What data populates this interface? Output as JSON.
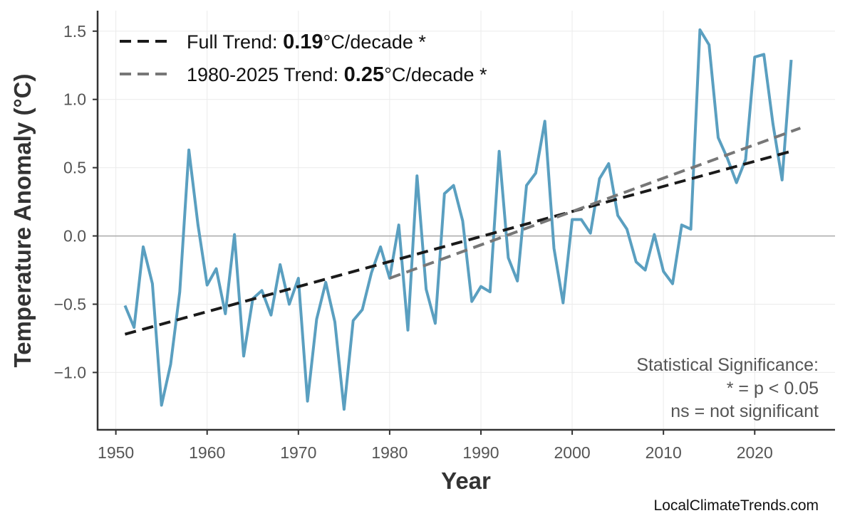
{
  "chart_data": {
    "type": "line",
    "title": "",
    "xlabel": "Year",
    "ylabel": "Temperature Anomaly (°C)",
    "xlim": [
      1948,
      2028.8
    ],
    "ylim": [
      -1.42,
      1.65
    ],
    "xticks": [
      1950,
      1960,
      1970,
      1980,
      1990,
      2000,
      2010,
      2020
    ],
    "yticks": [
      -1.0,
      -0.5,
      0.0,
      0.5,
      1.0,
      1.5
    ],
    "ytick_labels": [
      "−1.0",
      "−0.5",
      "0.0",
      "0.5",
      "1.0",
      "1.5"
    ],
    "grid": true,
    "zero_line": true,
    "series": [
      {
        "color": "#5a9fc0",
        "x": [
          1951,
          1952,
          1953,
          1954,
          1955,
          1956,
          1957,
          1958,
          1959,
          1960,
          1961,
          1962,
          1963,
          1964,
          1965,
          1966,
          1967,
          1968,
          1969,
          1970,
          1971,
          1972,
          1973,
          1974,
          1975,
          1976,
          1977,
          1978,
          1979,
          1980,
          1981,
          1982,
          1983,
          1984,
          1985,
          1986,
          1987,
          1988,
          1989,
          1990,
          1991,
          1992,
          1993,
          1994,
          1995,
          1996,
          1997,
          1998,
          1999,
          2000,
          2001,
          2002,
          2003,
          2004,
          2005,
          2006,
          2007,
          2008,
          2009,
          2010,
          2011,
          2012,
          2013,
          2014,
          2015,
          2016,
          2017,
          2018,
          2019,
          2020,
          2021,
          2022,
          2023,
          2024
        ],
        "values": [
          -0.51,
          -0.67,
          -0.08,
          -0.35,
          -1.24,
          -0.94,
          -0.41,
          0.63,
          0.08,
          -0.36,
          -0.24,
          -0.57,
          0.01,
          -0.88,
          -0.46,
          -0.4,
          -0.58,
          -0.21,
          -0.5,
          -0.31,
          -1.21,
          -0.61,
          -0.34,
          -0.63,
          -1.27,
          -0.62,
          -0.54,
          -0.27,
          -0.08,
          -0.31,
          0.08,
          -0.69,
          0.44,
          -0.39,
          -0.64,
          0.31,
          0.37,
          0.11,
          -0.48,
          -0.37,
          -0.41,
          0.62,
          -0.16,
          -0.33,
          0.37,
          0.46,
          0.84,
          -0.09,
          -0.49,
          0.12,
          0.12,
          0.02,
          0.42,
          0.53,
          0.15,
          0.05,
          -0.19,
          -0.25,
          0.01,
          -0.26,
          -0.35,
          0.08,
          0.05,
          1.51,
          1.4,
          0.72,
          0.57,
          0.39,
          0.56,
          1.31,
          1.33,
          0.82,
          0.41,
          1.29
        ]
      }
    ],
    "trends": [
      {
        "label_prefix": "Full Trend: ",
        "rate": "0.19",
        "label_suffix": "°C/decade *",
        "color": "#1a1a1a",
        "x": [
          1951,
          2024
        ],
        "values": [
          -0.72,
          0.62
        ]
      },
      {
        "label_prefix": "1980-2025 Trend: ",
        "rate": "0.25",
        "label_suffix": "°C/decade *",
        "color": "#777777",
        "x": [
          1980,
          2025
        ],
        "values": [
          -0.31,
          0.79
        ]
      }
    ],
    "legend_position": "top-left",
    "annotation": [
      "Statistical Significance:",
      "* = p < 0.05",
      "ns = not significant"
    ],
    "watermark": "LocalClimateTrends.com"
  }
}
